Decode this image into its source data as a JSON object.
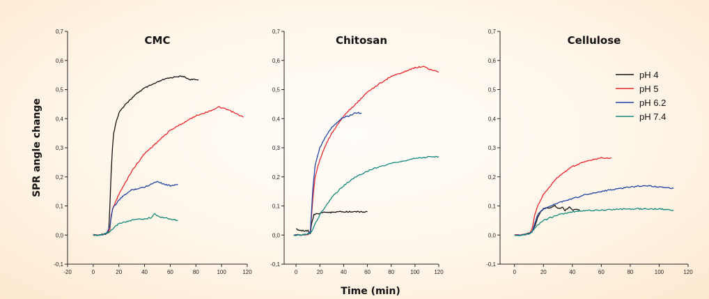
{
  "chart_data": [
    {
      "type": "line",
      "title": "CMC",
      "xlim": [
        -20,
        120
      ],
      "ylim": [
        -0.1,
        0.7
      ],
      "xticks": [
        "-20",
        "0",
        "20",
        "40",
        "60",
        "80",
        "100",
        "120"
      ],
      "yticks": [
        "-0,1",
        "0,0",
        "0,1",
        "0,2",
        "0,3",
        "0,4",
        "0,5",
        "0,6",
        "0,7"
      ],
      "series": [
        {
          "name": "pH 4",
          "x": [
            0,
            5,
            10,
            12,
            13,
            14,
            15,
            16,
            18,
            20,
            25,
            30,
            35,
            40,
            45,
            50,
            55,
            60,
            65,
            70,
            75,
            82
          ],
          "y": [
            0.0,
            0.0,
            0.005,
            0.01,
            0.1,
            0.22,
            0.3,
            0.35,
            0.39,
            0.42,
            0.45,
            0.47,
            0.49,
            0.505,
            0.515,
            0.525,
            0.535,
            0.54,
            0.545,
            0.545,
            0.535,
            0.533
          ]
        },
        {
          "name": "pH 5",
          "x": [
            0,
            5,
            10,
            13,
            14,
            16,
            20,
            25,
            30,
            40,
            50,
            60,
            70,
            80,
            90,
            98,
            105,
            110,
            117
          ],
          "y": [
            0.0,
            0.0,
            0.005,
            0.02,
            0.07,
            0.1,
            0.14,
            0.18,
            0.22,
            0.28,
            0.32,
            0.36,
            0.385,
            0.41,
            0.425,
            0.44,
            0.43,
            0.42,
            0.405
          ]
        },
        {
          "name": "pH 6.2",
          "x": [
            0,
            5,
            10,
            13,
            15,
            20,
            25,
            30,
            35,
            40,
            45,
            50,
            55,
            60,
            66
          ],
          "y": [
            0.0,
            0.0,
            0.005,
            0.03,
            0.09,
            0.12,
            0.14,
            0.155,
            0.16,
            0.165,
            0.175,
            0.185,
            0.175,
            0.17,
            0.175
          ]
        },
        {
          "name": "pH 7.4",
          "x": [
            0,
            5,
            10,
            13,
            15,
            20,
            25,
            30,
            35,
            40,
            45,
            48,
            50,
            55,
            60,
            66
          ],
          "y": [
            0.0,
            0.0,
            0.005,
            0.01,
            0.02,
            0.04,
            0.045,
            0.05,
            0.055,
            0.055,
            0.06,
            0.075,
            0.065,
            0.06,
            0.055,
            0.05
          ]
        }
      ]
    },
    {
      "type": "line",
      "title": "Chitosan",
      "xlim": [
        -10,
        120
      ],
      "ylim": [
        -0.1,
        0.7
      ],
      "xticks": [
        "0",
        "20",
        "40",
        "60",
        "80",
        "100",
        "120"
      ],
      "yticks": [
        "-0,1",
        "0,0",
        "0,1",
        "0,2",
        "0,3",
        "0,4",
        "0,5",
        "0,6",
        "0,7"
      ],
      "series": [
        {
          "name": "pH 4",
          "x": [
            0,
            5,
            10,
            12,
            13,
            15,
            20,
            25,
            30,
            35,
            40,
            45,
            50,
            55,
            60
          ],
          "y": [
            0.02,
            0.015,
            0.015,
            0.005,
            0.04,
            0.07,
            0.075,
            0.078,
            0.078,
            0.079,
            0.08,
            0.08,
            0.08,
            0.08,
            0.08
          ]
        },
        {
          "name": "pH 5",
          "x": [
            -2,
            5,
            10,
            12,
            14,
            16,
            20,
            25,
            30,
            40,
            50,
            60,
            70,
            80,
            90,
            100,
            107,
            112,
            120
          ],
          "y": [
            0.0,
            0.0,
            0.0,
            0.01,
            0.12,
            0.2,
            0.26,
            0.31,
            0.35,
            0.41,
            0.45,
            0.49,
            0.52,
            0.545,
            0.56,
            0.575,
            0.58,
            0.57,
            0.56
          ]
        },
        {
          "name": "pH 6.2",
          "x": [
            -2,
            5,
            10,
            12,
            14,
            16,
            20,
            25,
            30,
            35,
            40,
            45,
            50,
            55
          ],
          "y": [
            0.0,
            0.0,
            0.005,
            0.01,
            0.15,
            0.24,
            0.3,
            0.34,
            0.37,
            0.39,
            0.405,
            0.41,
            0.42,
            0.42
          ]
        },
        {
          "name": "pH 7.4",
          "x": [
            -2,
            5,
            10,
            13,
            15,
            20,
            25,
            30,
            40,
            50,
            60,
            70,
            80,
            90,
            100,
            110,
            120
          ],
          "y": [
            0.0,
            0.0,
            0.005,
            0.01,
            0.03,
            0.07,
            0.1,
            0.13,
            0.17,
            0.2,
            0.22,
            0.235,
            0.245,
            0.255,
            0.263,
            0.268,
            0.27
          ]
        }
      ]
    },
    {
      "type": "line",
      "title": "Cellulose",
      "xlim": [
        -10,
        120
      ],
      "ylim": [
        -0.1,
        0.7
      ],
      "xticks": [
        "0",
        "20",
        "40",
        "60",
        "80",
        "100",
        "120"
      ],
      "yticks": [
        "-0,1",
        "0,0",
        "0,1",
        "0,2",
        "0,3",
        "0,4",
        "0,5",
        "0,6",
        "0,7"
      ],
      "series": [
        {
          "name": "pH 4",
          "x": [
            0,
            5,
            10,
            12,
            14,
            16,
            18,
            20,
            25,
            28,
            30,
            33,
            35,
            38,
            40,
            42,
            45
          ],
          "y": [
            0.0,
            0.0,
            0.005,
            0.01,
            0.03,
            0.06,
            0.08,
            0.09,
            0.095,
            0.1,
            0.09,
            0.095,
            0.085,
            0.095,
            0.085,
            0.09,
            0.085
          ]
        },
        {
          "name": "pH 5",
          "x": [
            0,
            5,
            10,
            12,
            14,
            16,
            20,
            25,
            30,
            40,
            50,
            60,
            67
          ],
          "y": [
            0.0,
            0.0,
            0.005,
            0.02,
            0.07,
            0.1,
            0.14,
            0.17,
            0.2,
            0.235,
            0.255,
            0.265,
            0.265
          ]
        },
        {
          "name": "pH 6.2",
          "x": [
            0,
            5,
            10,
            12,
            14,
            16,
            20,
            25,
            30,
            40,
            50,
            60,
            70,
            80,
            90,
            100,
            110
          ],
          "y": [
            0.0,
            0.0,
            0.005,
            0.01,
            0.04,
            0.07,
            0.09,
            0.1,
            0.11,
            0.125,
            0.14,
            0.15,
            0.158,
            0.165,
            0.17,
            0.165,
            0.16
          ]
        },
        {
          "name": "pH 7.4",
          "x": [
            0,
            5,
            10,
            12,
            15,
            20,
            25,
            30,
            35,
            40,
            50,
            60,
            70,
            80,
            90,
            100,
            110
          ],
          "y": [
            0.0,
            0.0,
            0.005,
            0.01,
            0.03,
            0.05,
            0.06,
            0.07,
            0.075,
            0.08,
            0.085,
            0.085,
            0.088,
            0.09,
            0.09,
            0.09,
            0.085
          ]
        }
      ]
    }
  ],
  "shared": {
    "ylabel": "SPR angle change",
    "xlabel": "Time (min)",
    "legend_position": "right",
    "legend": [
      {
        "label": "pH 4",
        "color": "#111111"
      },
      {
        "label": "pH 5",
        "color": "#e8262b"
      },
      {
        "label": "pH 6.2",
        "color": "#2143a5"
      },
      {
        "label": "pH 7.4",
        "color": "#13897b"
      }
    ]
  }
}
